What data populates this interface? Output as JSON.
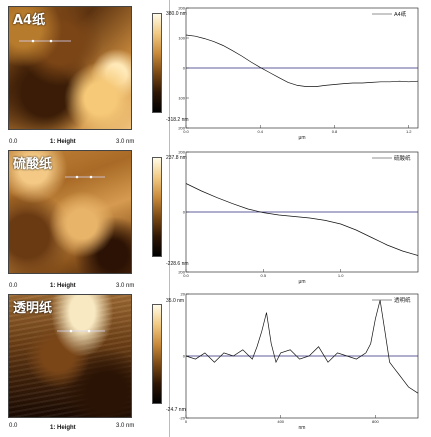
{
  "panels": [
    {
      "sample_label": "A4纸",
      "axis_start": "0.0",
      "channel": "1: Height",
      "axis_end": "3.0",
      "axis_unit": "nm",
      "cb_max": "380.0 nm",
      "cb_min": "-318.2 nm",
      "legend": "A4纸",
      "y_ticks": [
        "200",
        "100",
        "0",
        "-100",
        "-200"
      ],
      "x_ticks": [
        "0.0",
        "0.4",
        "0.8",
        "1.2"
      ],
      "x_unit": "μm",
      "chart_data": {
        "type": "line",
        "x": [
          0.0,
          0.05,
          0.1,
          0.15,
          0.2,
          0.25,
          0.3,
          0.35,
          0.4,
          0.45,
          0.5,
          0.55,
          0.6,
          0.65,
          0.7,
          0.75,
          0.8,
          0.85,
          0.9,
          0.95,
          1.0,
          1.05,
          1.1,
          1.15,
          1.2,
          1.25
        ],
        "y": [
          110,
          106,
          98,
          88,
          75,
          58,
          40,
          20,
          2,
          -15,
          -32,
          -48,
          -58,
          -62,
          -62,
          -58,
          -55,
          -52,
          -50,
          -50,
          -48,
          -46,
          -46,
          -44,
          -46,
          -44
        ],
        "xlim": [
          0.0,
          1.25
        ],
        "ylim": [
          -200,
          200
        ]
      }
    },
    {
      "sample_label": "硫酸纸",
      "axis_start": "0.0",
      "channel": "1: Height",
      "axis_end": "3.0",
      "axis_unit": "nm",
      "cb_max": "237.8 nm",
      "cb_min": "-228.6 nm",
      "legend": "硫酸纸",
      "y_ticks": [
        "200",
        "0",
        "-200"
      ],
      "x_ticks": [
        "0.0",
        "0.5",
        "1.0"
      ],
      "x_unit": "μm",
      "chart_data": {
        "type": "line",
        "x": [
          0.0,
          0.1,
          0.2,
          0.3,
          0.4,
          0.5,
          0.6,
          0.7,
          0.8,
          0.9,
          1.0,
          1.1,
          1.2,
          1.3,
          1.4,
          1.5
        ],
        "y": [
          95,
          70,
          48,
          28,
          10,
          -2,
          -10,
          -15,
          -20,
          -28,
          -40,
          -60,
          -85,
          -110,
          -130,
          -145
        ],
        "xlim": [
          0.0,
          1.5
        ],
        "ylim": [
          -200,
          200
        ]
      }
    },
    {
      "sample_label": "透明纸",
      "axis_start": "0.0",
      "channel": "1: Height",
      "axis_end": "3.0",
      "axis_unit": "nm",
      "cb_max": "35.0 nm",
      "cb_min": "-24.7 nm",
      "legend": "透明纸",
      "y_ticks": [
        "20",
        "0",
        "-20"
      ],
      "x_ticks": [
        "0",
        "400",
        "800"
      ],
      "x_unit": "nm",
      "chart_data": {
        "type": "line",
        "x": [
          0,
          40,
          80,
          120,
          160,
          200,
          240,
          280,
          300,
          320,
          340,
          360,
          380,
          400,
          440,
          480,
          520,
          560,
          600,
          640,
          680,
          720,
          760,
          780,
          800,
          820,
          840,
          860,
          880,
          900,
          920,
          940,
          980
        ],
        "y": [
          0,
          -1,
          1,
          -2,
          1,
          0,
          2,
          -1,
          3,
          8,
          14,
          4,
          -2,
          1,
          2,
          -1,
          0,
          3,
          -2,
          1,
          0,
          -1,
          1,
          4,
          12,
          18,
          8,
          -2,
          -4,
          -6,
          -8,
          -10,
          -12
        ],
        "xlim": [
          0,
          980
        ],
        "ylim": [
          -20,
          20
        ]
      }
    }
  ]
}
